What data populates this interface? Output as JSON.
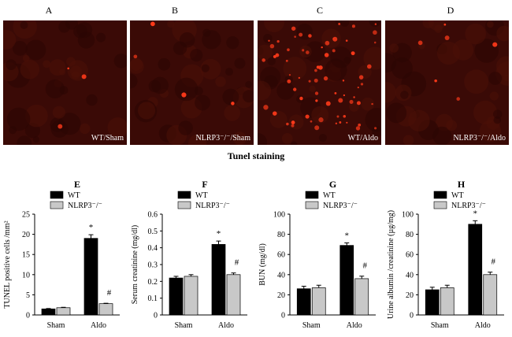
{
  "images": [
    {
      "letter": "A",
      "label": "WT/Sham",
      "dots": 3
    },
    {
      "letter": "B",
      "label": "NLRP3⁻/⁻/Sham",
      "dots": 4
    },
    {
      "letter": "C",
      "label": "WT/Aldo",
      "dots": 70
    },
    {
      "letter": "D",
      "label": "NLRP3⁻/⁻/Aldo",
      "dots": 6
    }
  ],
  "caption": "Tunel staining",
  "colors": {
    "wt": "#000000",
    "ko": "#c8c8c8",
    "tissue": "#3a0a06",
    "dot": "#ff3a1a"
  },
  "chart_data": [
    {
      "panel": "E",
      "type": "bar",
      "categories": [
        "Sham",
        "Aldo"
      ],
      "series": [
        {
          "name": "WT",
          "values": [
            1.5,
            19.0
          ],
          "errors": [
            0.1,
            0.9
          ]
        },
        {
          "name": "NLRP3⁻/⁻",
          "values": [
            1.8,
            2.8
          ],
          "errors": [
            0.1,
            0.1
          ]
        }
      ],
      "ylabel": "TUNEL positive cells /mm²",
      "ylim": [
        0,
        25
      ],
      "yticks": [
        "0",
        "5",
        "10",
        "15",
        "20",
        "25"
      ],
      "annotations": [
        "*",
        "#"
      ]
    },
    {
      "panel": "F",
      "type": "bar",
      "categories": [
        "Sham",
        "Aldo"
      ],
      "series": [
        {
          "name": "WT",
          "values": [
            0.22,
            0.42
          ],
          "errors": [
            0.01,
            0.02
          ]
        },
        {
          "name": "NLRP3⁻/⁻",
          "values": [
            0.23,
            0.24
          ],
          "errors": [
            0.01,
            0.01
          ]
        }
      ],
      "ylabel": "Serum creatinine (mg/dl)",
      "ylim": [
        0,
        0.6
      ],
      "yticks": [
        "0",
        "0.1",
        "0.2",
        "0.3",
        "0.4",
        "0.5",
        "0.6"
      ],
      "annotations": [
        "*",
        "#"
      ]
    },
    {
      "panel": "G",
      "type": "bar",
      "categories": [
        "Sham",
        "Aldo"
      ],
      "series": [
        {
          "name": "WT",
          "values": [
            26,
            69
          ],
          "errors": [
            2.5,
            2.5
          ]
        },
        {
          "name": "NLRP3⁻/⁻",
          "values": [
            27,
            36
          ],
          "errors": [
            2.5,
            2.5
          ]
        }
      ],
      "ylabel": "BUN (mg/dl)",
      "ylim": [
        0,
        100
      ],
      "yticks": [
        "0",
        "20",
        "40",
        "60",
        "80",
        "100"
      ],
      "annotations": [
        "*",
        "#"
      ]
    },
    {
      "panel": "H",
      "type": "bar",
      "categories": [
        "Sham",
        "Aldo"
      ],
      "series": [
        {
          "name": "WT",
          "values": [
            25,
            90
          ],
          "errors": [
            2.5,
            3.5
          ]
        },
        {
          "name": "NLRP3⁻/⁻",
          "values": [
            27,
            40
          ],
          "errors": [
            2.5,
            2.5
          ]
        }
      ],
      "ylabel": "Urine albumin /creatinine (µg/mg)",
      "ylim": [
        0,
        100
      ],
      "yticks": [
        "0",
        "20",
        "40",
        "60",
        "80",
        "100"
      ],
      "annotations": [
        "*",
        "#"
      ]
    }
  ]
}
